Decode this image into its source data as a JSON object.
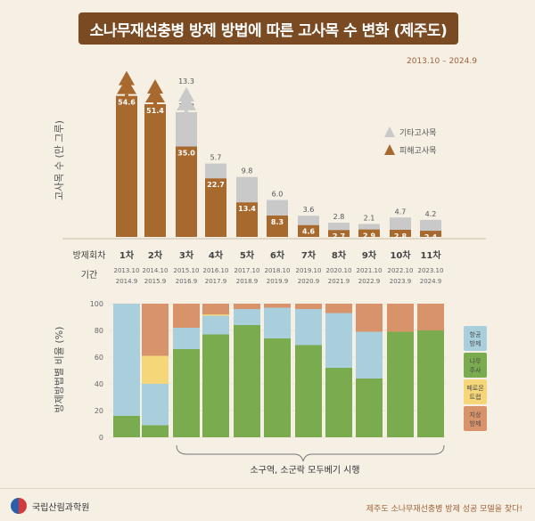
{
  "title": "소나무재선충병 방제 방법에 따른 고사목 수 변화 (제주도)",
  "period": "2013.10 – 2024.9",
  "footer": {
    "org": "국립산림과학원",
    "tagline": "제주도 소나무재선충병 방제 성공 모델을 찾다!"
  },
  "colors": {
    "brown": "#a8692f",
    "gray": "#c9c9c9",
    "blue": "#a9cfdc",
    "green": "#7aab4f",
    "yellow": "#f5d679",
    "orange": "#d8936a"
  },
  "chart_data": [
    {
      "type": "bar",
      "stacked": true,
      "ylabel": "고사목 수 (만 그루)",
      "row_labels": {
        "round": "방제회차",
        "period": "기간"
      },
      "categories": [
        "1차",
        "2차",
        "3차",
        "4차",
        "5차",
        "6차",
        "7차",
        "8차",
        "9차",
        "10차",
        "11차"
      ],
      "periods": [
        [
          "2013.10",
          "2014.9"
        ],
        [
          "2014.10",
          "2015.9"
        ],
        [
          "2015.10",
          "2016.9"
        ],
        [
          "2016.10",
          "2017.9"
        ],
        [
          "2017.10",
          "2018.9"
        ],
        [
          "2018.10",
          "2019.9"
        ],
        [
          "2019.10",
          "2020.9"
        ],
        [
          "2020.10",
          "2021.9"
        ],
        [
          "2021.10",
          "2022.9"
        ],
        [
          "2022.10",
          "2023.9"
        ],
        [
          "2023.10",
          "2024.9"
        ]
      ],
      "series": [
        {
          "name": "피해고사목",
          "values": [
            54.6,
            51.4,
            35.0,
            22.7,
            13.4,
            8.3,
            4.6,
            2.7,
            2.9,
            2.8,
            2.4
          ]
        },
        {
          "name": "기타고사목",
          "values": [
            null,
            null,
            13.3,
            5.7,
            9.8,
            6.0,
            3.6,
            2.8,
            2.1,
            4.7,
            4.2
          ]
        }
      ],
      "legend_position": "right"
    },
    {
      "type": "bar",
      "stacked": true,
      "ylabel": "방제방법별 비율 (%)",
      "ylim": [
        0,
        100
      ],
      "yticks": [
        0,
        20,
        40,
        60,
        80,
        100
      ],
      "categories": [
        "1차",
        "2차",
        "3차",
        "4차",
        "5차",
        "6차",
        "7차",
        "8차",
        "9차",
        "10차",
        "11차"
      ],
      "series": [
        {
          "name": "나무주사",
          "values": [
            16,
            9,
            66,
            77,
            84,
            74,
            69,
            52,
            44,
            79,
            80
          ]
        },
        {
          "name": "항공방제",
          "values": [
            84,
            31,
            16,
            14,
            12,
            23,
            27,
            41,
            35,
            0,
            0
          ]
        },
        {
          "name": "페로몬트랩",
          "values": [
            0,
            21,
            0,
            1,
            0,
            0,
            0,
            0,
            0,
            0,
            0
          ]
        },
        {
          "name": "지상방제",
          "values": [
            0,
            39,
            18,
            8,
            4,
            3,
            4,
            7,
            21,
            21,
            20
          ]
        }
      ],
      "legend_labels": [
        [
          "항공",
          "방제"
        ],
        [
          "나무",
          "주사"
        ],
        [
          "페로몬",
          "트랩"
        ],
        [
          "지상",
          "방제"
        ]
      ],
      "annotation": "소구역, 소군락 모두베기 시행",
      "legend_position": "right"
    }
  ]
}
